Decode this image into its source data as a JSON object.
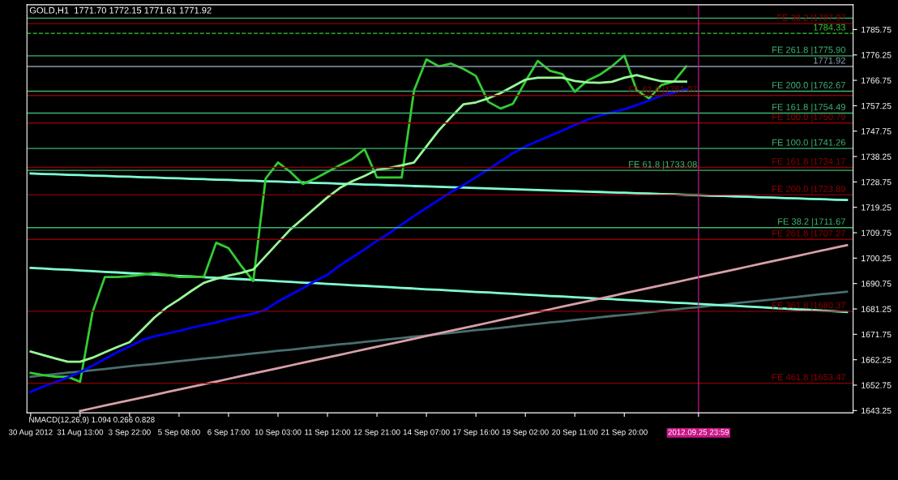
{
  "chart_data": {
    "type": "line",
    "title": "GOLD,H1  1771.70 1772.15 1771.61 1771.92",
    "categories": [
      "30 Aug 2012",
      null,
      null,
      null,
      "31 Aug 13:00",
      null,
      null,
      null,
      "3 Sep 22:00",
      null,
      null,
      null,
      "5 Sep 08:00",
      null,
      null,
      null,
      "6 Sep 17:00",
      null,
      null,
      null,
      "10 Sep 03:00",
      null,
      null,
      null,
      "11 Sep 12:00",
      null,
      null,
      null,
      "12 Sep 21:00",
      null,
      null,
      null,
      "14 Sep 07:00",
      null,
      null,
      null,
      "17 Sep 16:00",
      null,
      null,
      null,
      "19 Sep 02:00",
      null,
      null,
      null,
      "20 Sep 11:00",
      null,
      null,
      null,
      "21 Sep 20:00",
      null,
      null,
      null,
      null,
      null,
      "2012.09.25 23:59",
      null,
      null,
      null,
      null,
      null,
      null,
      null,
      null,
      null,
      null,
      null,
      null
    ],
    "ylim": [
      1642.4,
      1795.0
    ],
    "yticks": [
      1643.25,
      1652.75,
      1662.25,
      1671.75,
      1681.25,
      1690.75,
      1700.25,
      1709.75,
      1719.25,
      1728.75,
      1738.25,
      1747.75,
      1757.25,
      1766.75,
      1776.25,
      1785.75
    ],
    "marker": "none",
    "series": [
      {
        "color": "#4a6e6e",
        "values": [
          1655.9,
          1656.4,
          1656.9,
          1657.4,
          1657.8,
          1658.3,
          1658.8,
          1659.3,
          1659.8,
          1660.3,
          1660.7,
          1661.2,
          1661.7,
          1662.2,
          1662.7,
          1663.1,
          1663.6,
          1664.1,
          1664.6,
          1665.1,
          1665.6,
          1666.0,
          1666.5,
          1667.0,
          1667.5,
          1668.0,
          1668.4,
          1668.9,
          1669.4,
          1669.9,
          1670.4,
          1670.9,
          1671.3,
          1671.8,
          1672.3,
          1672.8,
          1673.3,
          1673.7,
          1674.2,
          1674.7,
          1675.2,
          1675.7,
          1676.2,
          1676.6,
          1677.1,
          1677.6,
          1678.1,
          1678.6,
          1679.0,
          1679.5,
          1680.0,
          1680.5,
          1681.0,
          1681.5,
          1681.9,
          1682.4,
          1682.9,
          1683.4,
          1683.9,
          1684.3,
          1684.8,
          1685.3,
          1685.8,
          1686.3,
          1686.8,
          1687.2,
          1687.7
        ]
      },
      {
        "color": "#7fffd4",
        "values": [
          1696.6,
          1696.4,
          1696.1,
          1695.9,
          1695.6,
          1695.4,
          1695.1,
          1694.9,
          1694.6,
          1694.4,
          1694.1,
          1693.9,
          1693.6,
          1693.4,
          1693.1,
          1692.9,
          1692.6,
          1692.4,
          1692.1,
          1691.9,
          1691.6,
          1691.4,
          1691.1,
          1690.9,
          1690.6,
          1690.4,
          1690.1,
          1689.9,
          1689.6,
          1689.4,
          1689.1,
          1688.9,
          1688.6,
          1688.4,
          1688.1,
          1687.9,
          1687.6,
          1687.4,
          1687.1,
          1686.9,
          1686.6,
          1686.4,
          1686.1,
          1685.9,
          1685.6,
          1685.4,
          1685.1,
          1684.9,
          1684.6,
          1684.4,
          1684.1,
          1683.9,
          1683.6,
          1683.4,
          1683.1,
          1682.9,
          1682.6,
          1682.4,
          1682.1,
          1681.9,
          1681.6,
          1681.4,
          1681.1,
          1680.9,
          1680.6,
          1680.4,
          1680.1
        ]
      },
      {
        "color": "#7fffd4",
        "values": [
          1731.9,
          1731.7,
          1731.6,
          1731.4,
          1731.3,
          1731.1,
          1731.0,
          1730.8,
          1730.7,
          1730.5,
          1730.4,
          1730.2,
          1730.1,
          1729.9,
          1729.8,
          1729.6,
          1729.5,
          1729.3,
          1729.2,
          1729.0,
          1728.9,
          1728.7,
          1728.6,
          1728.4,
          1728.3,
          1728.1,
          1728.0,
          1727.8,
          1727.7,
          1727.5,
          1727.4,
          1727.2,
          1727.1,
          1726.9,
          1726.8,
          1726.6,
          1726.5,
          1726.3,
          1726.2,
          1726.0,
          1725.9,
          1725.7,
          1725.6,
          1725.4,
          1725.3,
          1725.1,
          1725.0,
          1724.8,
          1724.7,
          1724.5,
          1724.4,
          1724.2,
          1724.1,
          1723.9,
          1723.8,
          1723.6,
          1723.5,
          1723.3,
          1723.2,
          1723.0,
          1722.9,
          1722.7,
          1722.6,
          1722.4,
          1722.3,
          1722.1,
          1722.0
        ]
      },
      {
        "color": "#d8a0a8",
        "values": [
          null,
          null,
          null,
          null,
          1643.1,
          1644.1,
          1645.1,
          1646.1,
          1647.1,
          1648.1,
          1649.1,
          1650.1,
          1651.1,
          1652.1,
          1653.1,
          1654.1,
          1655.1,
          1656.1,
          1657.1,
          1658.1,
          1659.1,
          1660.1,
          1661.1,
          1662.1,
          1663.1,
          1664.1,
          1665.1,
          1666.1,
          1667.1,
          1668.1,
          1669.1,
          1670.1,
          1671.1,
          1672.1,
          1673.1,
          1674.1,
          1675.1,
          1676.1,
          1677.1,
          1678.1,
          1679.1,
          1680.1,
          1681.1,
          1682.1,
          1683.1,
          1684.1,
          1685.1,
          1686.1,
          1687.1,
          1688.1,
          1689.1,
          1690.1,
          1691.1,
          1692.1,
          1693.1,
          1694.1,
          1695.1,
          1696.1,
          1697.1,
          1698.1,
          1699.1,
          1700.1,
          1701.1,
          1702.1,
          1703.1,
          1704.1,
          1705.1
        ]
      },
      {
        "color": "#32cd32",
        "values": [
          1657.3,
          1656.5,
          1655.9,
          1655.9,
          1654.0,
          1680.0,
          1693.2,
          1693.2,
          1693.5,
          1694.0,
          1694.6,
          1694.0,
          1693.2,
          1693.2,
          1693.2,
          1706.0,
          1704.0,
          1697.5,
          1691.7,
          1730.0,
          1736.0,
          1732.5,
          1728.0,
          1730.0,
          1732.5,
          1735.0,
          1737.3,
          1741.0,
          1730.4,
          1730.4,
          1730.4,
          1763.0,
          1774.6,
          1772.0,
          1773.0,
          1771.0,
          1768.4,
          1758.7,
          1756.2,
          1758.0,
          1766.3,
          1774.0,
          1770.3,
          1769.1,
          1762.5,
          1766.6,
          1768.8,
          1772.0,
          1776.0,
          1763.0,
          1760.0,
          1765.0,
          1766.3,
          1771.92,
          null,
          null,
          null,
          null,
          null,
          null,
          null,
          null,
          null,
          null,
          null,
          null,
          null
        ]
      },
      {
        "color": "#98fb98",
        "values": [
          1665.3,
          1664.0,
          1662.7,
          1661.5,
          1661.5,
          1663.0,
          1665.0,
          1667.0,
          1668.8,
          1673.4,
          1678.0,
          1681.8,
          1684.8,
          1688.0,
          1691.0,
          1692.5,
          1693.7,
          1694.7,
          1696.0,
          1701.0,
          1706.0,
          1711.0,
          1715.0,
          1719.0,
          1723.0,
          1726.5,
          1729.0,
          1731.0,
          1733.3,
          1734.0,
          1735.0,
          1736.0,
          1742.0,
          1748.0,
          1753.0,
          1757.8,
          1758.5,
          1760.0,
          1762.0,
          1764.5,
          1767.0,
          1767.7,
          1767.7,
          1767.7,
          1766.5,
          1766.0,
          1765.8,
          1766.2,
          1767.7,
          1768.7,
          1767.5,
          1766.4,
          1766.3,
          1766.3,
          null,
          null,
          null,
          null,
          null,
          null,
          null,
          null,
          null,
          null,
          null,
          null,
          null
        ]
      },
      {
        "color": "#0000ff",
        "values": [
          1650.2,
          1652.2,
          1653.9,
          1655.6,
          1657.6,
          1660.0,
          1662.5,
          1665.0,
          1667.2,
          1669.6,
          1671.0,
          1672.0,
          1673.0,
          1674.2,
          1675.2,
          1676.2,
          1677.4,
          1678.5,
          1679.5,
          1681.0,
          1684.0,
          1686.5,
          1689.0,
          1691.7,
          1694.0,
          1697.5,
          1700.5,
          1703.5,
          1706.7,
          1709.6,
          1712.8,
          1716.0,
          1719.0,
          1722.0,
          1725.0,
          1727.6,
          1730.5,
          1733.4,
          1736.5,
          1739.5,
          1742.0,
          1744.0,
          1746.0,
          1748.0,
          1750.0,
          1752.0,
          1753.5,
          1754.8,
          1755.9,
          1757.5,
          1759.2,
          1761.0,
          1762.2,
          1763.4,
          null,
          null,
          null,
          null,
          null,
          null,
          null,
          null,
          null,
          null,
          null,
          null,
          null
        ]
      }
    ],
    "ref_lines": [
      {
        "axis": "y",
        "value": 1790.0,
        "color": "#3cb371"
      },
      {
        "axis": "y",
        "value": 1787.97,
        "label": "FE 38.2 |1787.97",
        "color": "#8b0000"
      },
      {
        "axis": "y",
        "value": 1784.33,
        "label": "1784.33",
        "color": "#32cd32",
        "line_style": "dashed"
      },
      {
        "axis": "y",
        "value": 1775.9,
        "label": "FE 261.8 |1775.90",
        "color": "#3cb371"
      },
      {
        "axis": "y",
        "value": 1771.92,
        "label": "1771.92",
        "color": "#8c9aa8"
      },
      {
        "axis": "y",
        "value": 1762.67,
        "label": "FE 200.0 |1762.67",
        "color": "#3cb371"
      },
      {
        "axis": "y",
        "value": 1761.07,
        "label": "FE 61.8 |1761.07",
        "color": "#8b0000"
      },
      {
        "axis": "y",
        "value": 1754.49,
        "label": "FE 161.8 |1754.49",
        "color": "#3cb371"
      },
      {
        "axis": "y",
        "value": 1750.79,
        "label": "FE 100.0 |1750.79",
        "color": "#8b0000"
      },
      {
        "axis": "y",
        "value": 1741.26,
        "label": "FE 100.0 |1741.26",
        "color": "#3cb371"
      },
      {
        "axis": "y",
        "value": 1734.17,
        "label": "FE 161.8 |1734.17",
        "color": "#8b0000"
      },
      {
        "axis": "y",
        "value": 1733.08,
        "label": "FE 61.8 |1733.08",
        "color": "#3cb371"
      },
      {
        "axis": "y",
        "value": 1723.89,
        "label": "FE 200.0 |1723.89",
        "color": "#8b0000"
      },
      {
        "axis": "y",
        "value": 1711.67,
        "label": "FE 38.2 |1711.67",
        "color": "#3cb371"
      },
      {
        "axis": "y",
        "value": 1707.27,
        "label": "FE 261.8 |1707.27",
        "color": "#8b0000"
      },
      {
        "axis": "y",
        "value": 1680.37,
        "label": "FE 361.8 |1680.37",
        "color": "#8b0000"
      },
      {
        "axis": "y",
        "value": 1653.47,
        "label": "FE 461.8 |1653.47",
        "color": "#8b0000"
      },
      {
        "axis": "x",
        "value": "2012.09.25 23:59",
        "color": "#c71585"
      }
    ],
    "annotations": [
      "NMACD(12,26,9) 1.094 0.266 0.828"
    ]
  }
}
